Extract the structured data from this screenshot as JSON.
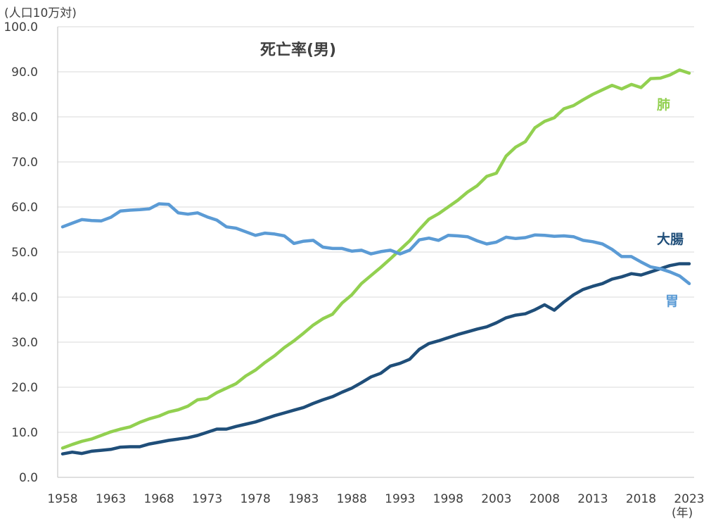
{
  "chart_data": {
    "type": "line",
    "title": "死亡率(男)",
    "y_unit_label": "(人口10万対)",
    "x_unit_label": "(年)",
    "ylim": [
      0,
      100
    ],
    "y_ticks": [
      "0.0",
      "10.0",
      "20.0",
      "30.0",
      "40.0",
      "50.0",
      "60.0",
      "70.0",
      "80.0",
      "90.0",
      "100.0"
    ],
    "x_tick_labels": [
      "1958",
      "1963",
      "1968",
      "1973",
      "1978",
      "1983",
      "1988",
      "1993",
      "1998",
      "2003",
      "2008",
      "2013",
      "2018",
      "2023"
    ],
    "grid": true,
    "x": [
      1958,
      1959,
      1960,
      1961,
      1962,
      1963,
      1964,
      1965,
      1966,
      1967,
      1968,
      1969,
      1970,
      1971,
      1972,
      1973,
      1974,
      1975,
      1976,
      1977,
      1978,
      1979,
      1980,
      1981,
      1982,
      1983,
      1984,
      1985,
      1986,
      1987,
      1988,
      1989,
      1990,
      1991,
      1992,
      1993,
      1994,
      1995,
      1996,
      1997,
      1998,
      1999,
      2000,
      2001,
      2002,
      2003,
      2004,
      2005,
      2006,
      2007,
      2008,
      2009,
      2010,
      2011,
      2012,
      2013,
      2014,
      2015,
      2016,
      2017,
      2018,
      2019,
      2020,
      2021,
      2022,
      2023
    ],
    "series": [
      {
        "name": "肺",
        "color": "#92d050",
        "values": [
          6.5,
          7.3,
          8.0,
          8.5,
          9.3,
          10.1,
          10.7,
          11.2,
          12.2,
          13.0,
          13.6,
          14.5,
          15.0,
          15.8,
          17.2,
          17.5,
          18.8,
          19.8,
          20.8,
          22.5,
          23.8,
          25.5,
          27.0,
          28.8,
          30.3,
          32.0,
          33.8,
          35.2,
          36.2,
          38.7,
          40.5,
          43.0,
          44.8,
          46.6,
          48.5,
          50.5,
          52.5,
          55.0,
          57.3,
          58.5,
          60.0,
          61.5,
          63.3,
          64.7,
          66.8,
          67.5,
          71.3,
          73.3,
          74.5,
          77.6,
          79.0,
          79.8,
          81.8,
          82.5,
          83.8,
          85.0,
          86.0,
          87.0,
          86.2,
          87.2,
          86.5,
          88.5,
          88.6,
          89.3,
          90.4,
          89.7
        ]
      },
      {
        "name": "大腸",
        "color": "#1f4e79",
        "values": [
          5.2,
          5.6,
          5.3,
          5.8,
          6.0,
          6.2,
          6.7,
          6.8,
          6.8,
          7.4,
          7.8,
          8.2,
          8.5,
          8.8,
          9.3,
          10.0,
          10.7,
          10.7,
          11.3,
          11.8,
          12.3,
          13.0,
          13.7,
          14.3,
          14.9,
          15.5,
          16.4,
          17.2,
          17.9,
          18.9,
          19.8,
          21.0,
          22.3,
          23.1,
          24.7,
          25.3,
          26.2,
          28.4,
          29.7,
          30.3,
          31.0,
          31.7,
          32.3,
          32.9,
          33.4,
          34.3,
          35.4,
          36.0,
          36.3,
          37.2,
          38.3,
          37.1,
          38.9,
          40.5,
          41.7,
          42.4,
          43.0,
          44.0,
          44.5,
          45.2,
          44.9,
          45.6,
          46.3,
          47.0,
          47.4,
          47.4
        ]
      },
      {
        "name": "胃",
        "color": "#5b9bd5",
        "values": [
          55.6,
          56.4,
          57.2,
          57.0,
          56.9,
          57.7,
          59.1,
          59.3,
          59.4,
          59.6,
          60.7,
          60.6,
          58.7,
          58.4,
          58.7,
          57.8,
          57.1,
          55.6,
          55.3,
          54.5,
          53.7,
          54.2,
          54.0,
          53.6,
          51.9,
          52.4,
          52.6,
          51.1,
          50.8,
          50.8,
          50.2,
          50.4,
          49.6,
          50.1,
          50.4,
          49.6,
          50.4,
          52.7,
          53.1,
          52.6,
          53.7,
          53.6,
          53.4,
          52.5,
          51.8,
          52.2,
          53.3,
          53.0,
          53.2,
          53.8,
          53.7,
          53.5,
          53.6,
          53.4,
          52.6,
          52.3,
          51.8,
          50.6,
          49.0,
          49.0,
          47.8,
          46.7,
          46.3,
          45.6,
          44.7,
          43.0
        ]
      }
    ]
  }
}
